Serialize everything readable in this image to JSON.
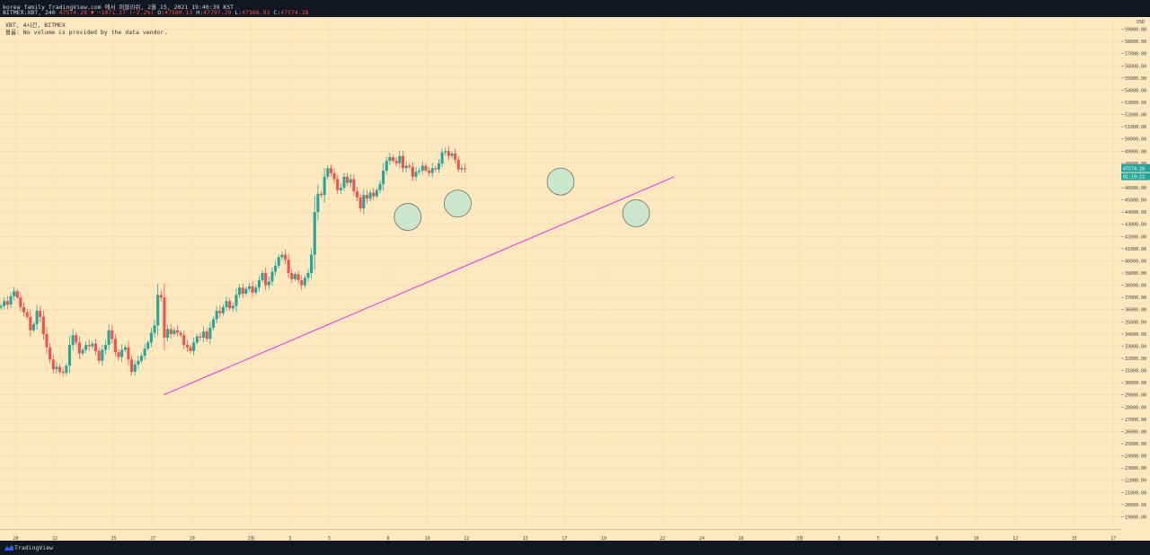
{
  "header": {
    "line1": "korea_family TradingView.com 에서 퍼블리쉬, 2월 15, 2021 19:40:39 KST",
    "symbol": "BITMEX:XBT, 240",
    "last": "47574.28",
    "change": "▼ −1071.27 (−2.2%)",
    "o_label": "O:",
    "o_value": "47580.13",
    "h_label": "H:",
    "h_value": "47797.29",
    "l_label": "L:",
    "l_value": "47166.92",
    "c_label": "C:",
    "c_value": "47574.28"
  },
  "legend": {
    "series": "XBT, 4시간, BITMEX",
    "volume_label": "볼륨:",
    "volume_note": "No volume is provided by the data vendor."
  },
  "footer": {
    "brand": "TradingView"
  },
  "chart_data": {
    "type": "candlestick",
    "y_axis": {
      "currency": "USD",
      "min": 18000,
      "max": 60000,
      "ticks": [
        19000,
        20000,
        21000,
        22000,
        23000,
        24000,
        25000,
        26000,
        27000,
        28000,
        29000,
        30000,
        31000,
        32000,
        33000,
        34000,
        35000,
        36000,
        37000,
        38000,
        39000,
        40000,
        41000,
        42000,
        43000,
        44000,
        45000,
        46000,
        47000,
        48000,
        49000,
        50000,
        51000,
        52000,
        53000,
        54000,
        55000,
        56000,
        57000,
        58000,
        59000
      ],
      "tick_labels": [
        "19000.00",
        "20000.00",
        "21000.00",
        "22000.00",
        "23000.00",
        "24000.00",
        "25000.00",
        "26000.00",
        "27000.00",
        "28000.00",
        "29000.00",
        "30000.00",
        "31000.00",
        "32000.00",
        "33000.00",
        "34000.00",
        "35000.00",
        "36000.00",
        "37000.00",
        "38000.00",
        "39000.00",
        "40000.00",
        "41000.00",
        "42000.00",
        "43000.00",
        "44000.00",
        "45000.00",
        "46000.00",
        "47000.00",
        "48000.00",
        "49000.00",
        "50000.00",
        "51000.00",
        "52000.00",
        "53000.00",
        "54000.00",
        "55000.00",
        "56000.00",
        "57000.00",
        "58000.00",
        "59000.00"
      ]
    },
    "x_axis": {
      "start_day": 19.2,
      "end_day": 76.4,
      "ticks": [
        {
          "day": 20,
          "label": "20"
        },
        {
          "day": 22,
          "label": "22"
        },
        {
          "day": 25,
          "label": "25"
        },
        {
          "day": 27,
          "label": "27"
        },
        {
          "day": 29,
          "label": "29"
        },
        {
          "day": 32,
          "label": "2월"
        },
        {
          "day": 34,
          "label": "3"
        },
        {
          "day": 36,
          "label": "5"
        },
        {
          "day": 39,
          "label": "8"
        },
        {
          "day": 41,
          "label": "10"
        },
        {
          "day": 43,
          "label": "12"
        },
        {
          "day": 46,
          "label": "15"
        },
        {
          "day": 48,
          "label": "17"
        },
        {
          "day": 50,
          "label": "19"
        },
        {
          "day": 53,
          "label": "22"
        },
        {
          "day": 55,
          "label": "24"
        },
        {
          "day": 57,
          "label": "26"
        },
        {
          "day": 60,
          "label": "3월"
        },
        {
          "day": 62,
          "label": "3"
        },
        {
          "day": 64,
          "label": "5"
        },
        {
          "day": 67,
          "label": "8"
        },
        {
          "day": 69,
          "label": "10"
        },
        {
          "day": 71,
          "label": "12"
        },
        {
          "day": 74,
          "label": "15"
        },
        {
          "day": 76,
          "label": "17"
        }
      ]
    },
    "current_price_label": "47574.28",
    "countdown_label": "01:19:22",
    "current_price": 47574.28,
    "candle_start_day": 19.25,
    "candle_step_days": 0.1667,
    "closes": [
      36300,
      36700,
      36400,
      37100,
      37500,
      37000,
      36200,
      35800,
      35400,
      34300,
      34800,
      35900,
      35400,
      34000,
      32900,
      31900,
      31100,
      31300,
      30900,
      30800,
      31400,
      33100,
      33900,
      33300,
      32400,
      32700,
      33100,
      33000,
      33200,
      32600,
      31800,
      32700,
      33100,
      34300,
      33600,
      32500,
      32100,
      32700,
      32900,
      31900,
      30900,
      31500,
      31800,
      32200,
      32800,
      33300,
      34100,
      34700,
      37200,
      37000,
      33700,
      34400,
      34000,
      34300,
      34100,
      33900,
      33100,
      32900,
      32600,
      33300,
      33800,
      33700,
      34200,
      33600,
      34500,
      35200,
      35900,
      35700,
      36200,
      36700,
      36100,
      36300,
      37200,
      37800,
      37300,
      37700,
      37900,
      37400,
      37800,
      38400,
      39000,
      38000,
      38300,
      39100,
      39600,
      40300,
      40500,
      40100,
      39000,
      38500,
      38900,
      38400,
      38000,
      38600,
      39000,
      40500,
      44000,
      45500,
      45400,
      46900,
      47600,
      47200,
      46700,
      45800,
      46000,
      46900,
      46400,
      46700,
      45700,
      45200,
      44300,
      45400,
      45100,
      45600,
      45300,
      45800,
      46300,
      47400,
      48200,
      48500,
      48200,
      48000,
      48600,
      47600,
      47800,
      47700,
      46900,
      47300,
      47400,
      47800,
      47400,
      47200,
      47600,
      47500,
      48000,
      48900,
      49000,
      48600,
      48800,
      48300,
      47500,
      47600,
      47574
    ],
    "trendline": [
      {
        "day": 27.55,
        "price": 29000
      },
      {
        "day": 53.6,
        "price": 46900
      }
    ],
    "circles": [
      {
        "day": 40.0,
        "price": 43600
      },
      {
        "day": 42.55,
        "price": 44700
      },
      {
        "day": 47.8,
        "price": 46500
      },
      {
        "day": 51.65,
        "price": 43900
      }
    ],
    "colors": {
      "up": "#26a69a",
      "down": "#ef5350",
      "trendline": "#e62ee6",
      "circle_fill": "#b9e7cf",
      "circle_stroke": "#6e6e6e",
      "background": "#fee8bf",
      "grid": "#f3d9a7"
    }
  }
}
